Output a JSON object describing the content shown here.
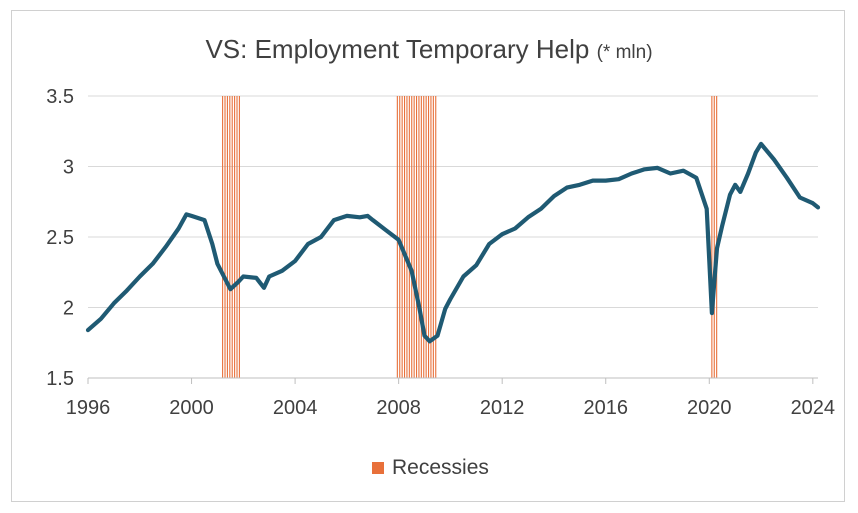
{
  "chart_data": {
    "type": "line",
    "title": "VS: Employment Temporary Help",
    "title_unit": "(* mln)",
    "xlabel": "",
    "ylabel": "",
    "x_ticks": [
      "1996",
      "2000",
      "2004",
      "2008",
      "2012",
      "2016",
      "2020",
      "2024"
    ],
    "y_ticks": [
      "1.5",
      "2",
      "2.5",
      "3",
      "3.5"
    ],
    "xlim": [
      1996,
      2024.2
    ],
    "ylim": [
      1.5,
      3.5
    ],
    "grid": true,
    "legend_position": "bottom",
    "colors": {
      "series": "#1f5a73",
      "recession": "#e8703a",
      "grid": "#d9d9d9",
      "text": "#404040"
    },
    "series": [
      {
        "x": [
          1996.0,
          1996.5,
          1997.0,
          1997.5,
          1998.0,
          1998.5,
          1999.0,
          1999.5,
          1999.8,
          2000.0,
          2000.5,
          2000.8,
          2001.0,
          2001.5,
          2001.8,
          2002.0,
          2002.5,
          2002.8,
          2003.0,
          2003.5,
          2004.0,
          2004.5,
          2005.0,
          2005.5,
          2006.0,
          2006.5,
          2006.8,
          2007.0,
          2007.5,
          2008.0,
          2008.5,
          2008.8,
          2009.0,
          2009.2,
          2009.5,
          2009.8,
          2010.0,
          2010.5,
          2011.0,
          2011.5,
          2012.0,
          2012.5,
          2013.0,
          2013.5,
          2014.0,
          2014.5,
          2015.0,
          2015.5,
          2016.0,
          2016.5,
          2017.0,
          2017.5,
          2018.0,
          2018.5,
          2019.0,
          2019.5,
          2019.9,
          2020.1,
          2020.2,
          2020.3,
          2020.5,
          2020.8,
          2021.0,
          2021.2,
          2021.5,
          2021.8,
          2022.0,
          2022.5,
          2023.0,
          2023.5,
          2024.0,
          2024.2
        ],
        "values": [
          1.84,
          1.92,
          2.03,
          2.12,
          2.22,
          2.31,
          2.43,
          2.56,
          2.66,
          2.65,
          2.62,
          2.45,
          2.31,
          2.13,
          2.18,
          2.22,
          2.21,
          2.14,
          2.22,
          2.26,
          2.33,
          2.45,
          2.5,
          2.62,
          2.65,
          2.64,
          2.65,
          2.62,
          2.55,
          2.48,
          2.26,
          2.0,
          1.8,
          1.76,
          1.8,
          1.99,
          2.06,
          2.22,
          2.3,
          2.45,
          2.52,
          2.56,
          2.64,
          2.7,
          2.79,
          2.85,
          2.87,
          2.9,
          2.9,
          2.91,
          2.95,
          2.98,
          2.99,
          2.95,
          2.97,
          2.92,
          2.7,
          1.96,
          2.2,
          2.42,
          2.58,
          2.8,
          2.87,
          2.82,
          2.95,
          3.1,
          3.16,
          3.05,
          2.92,
          2.78,
          2.74,
          2.71
        ]
      }
    ],
    "recessions": [
      [
        2001.2,
        2001.9
      ],
      [
        2007.95,
        2009.5
      ],
      [
        2020.1,
        2020.35
      ]
    ],
    "legend": [
      "Recessies"
    ]
  }
}
